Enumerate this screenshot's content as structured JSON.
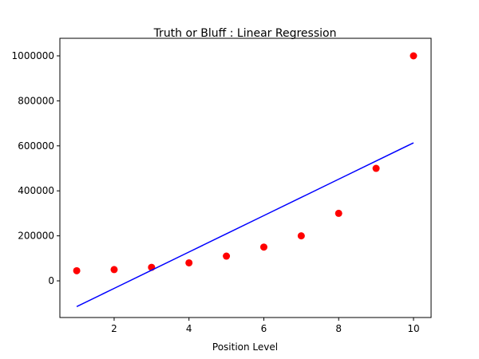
{
  "chart_data": {
    "type": "scatter",
    "title": "Truth or Bluff : Linear Regression",
    "x_label": "Position Level",
    "x": [
      1,
      2,
      3,
      4,
      5,
      6,
      7,
      8,
      9,
      10
    ],
    "series": [
      {
        "type": "scatter",
        "color": "#ff0000",
        "values": [
          45000,
          50000,
          60000,
          80000,
          110000,
          150000,
          200000,
          300000,
          500000,
          1000000
        ]
      },
      {
        "type": "line",
        "color": "#0000ff",
        "values": [
          -114455,
          -33576,
          47303,
          128182,
          209061,
          289939,
          370818,
          451697,
          532576,
          613455
        ]
      }
    ],
    "xlim": [
      0.55,
      10.47
    ],
    "ylim": [
      -163000,
      1078000
    ],
    "xticks": [
      2,
      4,
      6,
      8,
      10
    ],
    "yticks": [
      0,
      200000,
      400000,
      600000,
      800000,
      1000000
    ]
  }
}
